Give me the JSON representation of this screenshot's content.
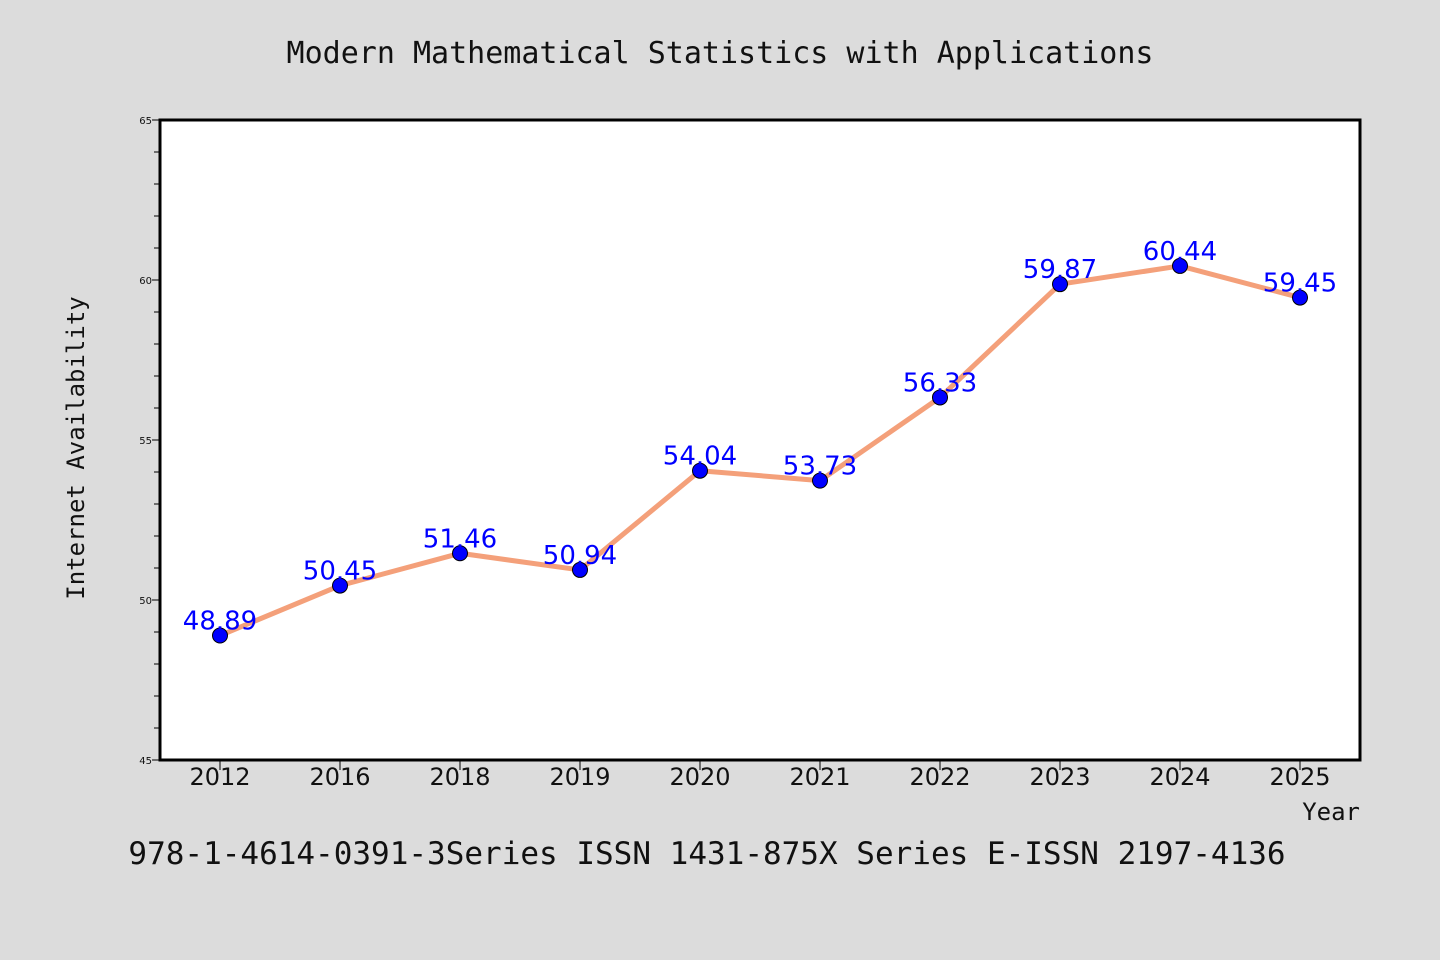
{
  "chart_data": {
    "type": "line",
    "title": "Modern Mathematical Statistics with Applications",
    "xlabel": "Year",
    "ylabel": "Internet Availability",
    "footer": "978-1-4614-0391-3Series ISSN 1431-875X Series E-ISSN 2197-4136",
    "categories": [
      "2012",
      "2016",
      "2018",
      "2019",
      "2020",
      "2021",
      "2022",
      "2023",
      "2024",
      "2025"
    ],
    "series": [
      {
        "values": [
          48.89,
          50.45,
          51.46,
          50.94,
          54.04,
          53.73,
          56.33,
          59.87,
          60.44,
          59.45
        ],
        "labels": [
          "48.89",
          "50.45",
          "51.46",
          "50.94",
          "54.04",
          "53.73",
          "56.33",
          "59.87",
          "60.44",
          "59.45"
        ]
      }
    ],
    "ylim": [
      45,
      65
    ],
    "yticks": [
      "45",
      "50",
      "55",
      "60",
      "65"
    ],
    "grid": false,
    "legend": "none",
    "colors": {
      "line": "#f4a07a",
      "marker": "#0000ff",
      "label": "#0000ff",
      "background": "#dcdcdc",
      "plot_background": "#ffffff"
    }
  }
}
